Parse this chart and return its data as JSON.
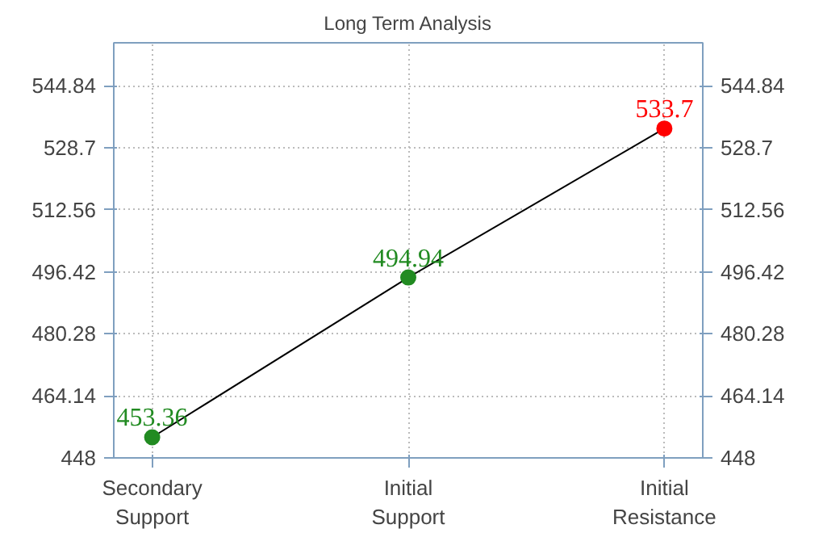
{
  "chart_data": {
    "type": "line",
    "title": "Long Term Analysis",
    "categories": [
      "Secondary\nSupport",
      "Initial\nSupport",
      "Initial\nResistance"
    ],
    "series": [
      {
        "color": "#000000",
        "colors": [
          "#228b22",
          "#228b22",
          "#ff0000"
        ],
        "values": [
          453.36,
          494.94,
          533.7
        ]
      }
    ],
    "data_labels": true,
    "marker": "circle",
    "grid": true,
    "ylim": [
      448,
      556
    ],
    "yticks": [
      448,
      464.14,
      480.28,
      496.42,
      512.56,
      528.7,
      544.84
    ],
    "y2lim": [
      448,
      556
    ],
    "y2ticks": [
      448,
      464.14,
      480.28,
      496.42,
      512.56,
      528.7,
      544.84
    ]
  }
}
